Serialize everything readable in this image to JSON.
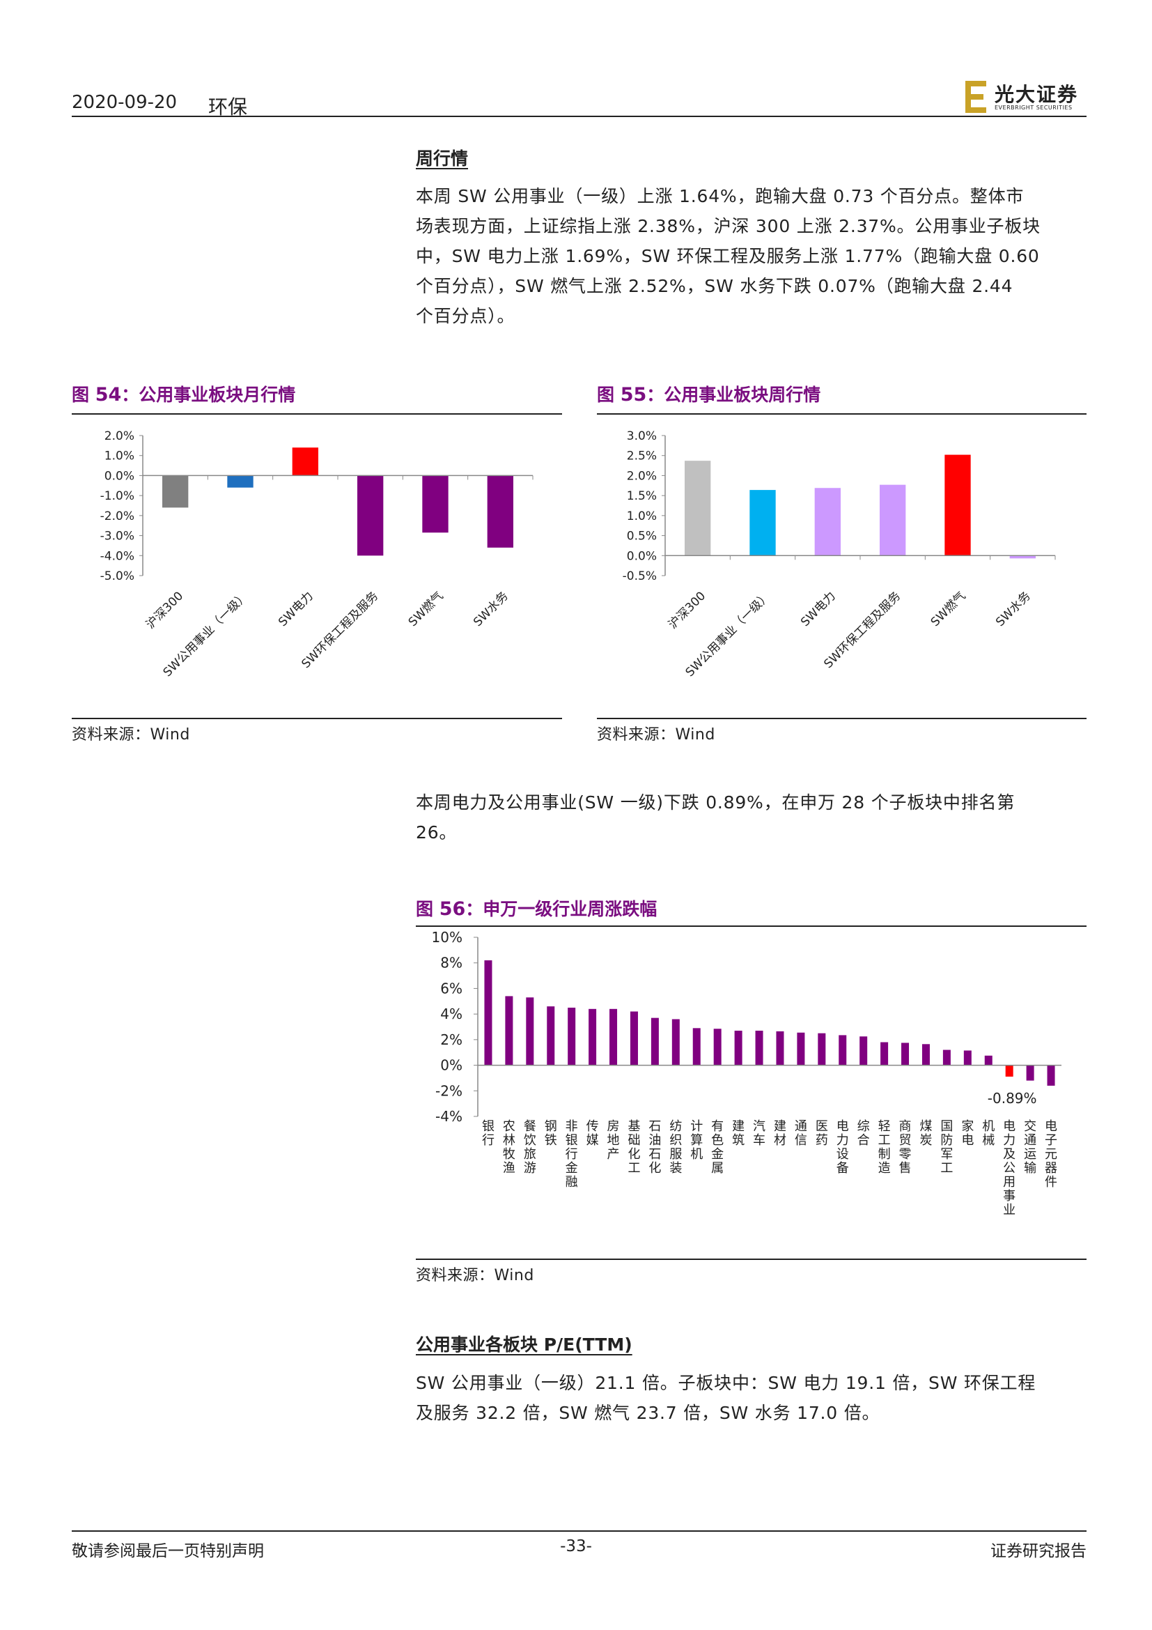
{
  "header": {
    "date": "2020-09-20",
    "category": "环保",
    "logo_text": "光大证券",
    "logo_sub": "EVERBRIGHT SECURITIES"
  },
  "weekly_market": {
    "title": "周行情",
    "lines": [
      "本周 SW 公用事业（一级）上涨 1.64%，跑输大盘 0.73 个百分点。整体市",
      "场表现方面，上证综指上涨 2.38%，沪深 300 上涨 2.37%。公用事业子板块",
      "中，SW 电力上涨 1.69%，SW 环保工程及服务上涨 1.77%（跑输大盘 0.60",
      "个百分点），SW 燃气上涨 2.52%，SW 水务下跌 0.07%（跑输大盘 2.44",
      "个百分点）。"
    ]
  },
  "fig54": {
    "prefix": "图 ",
    "num": "54",
    "title": "：公用事业板块月行情",
    "source": "资料来源：Wind"
  },
  "fig55": {
    "prefix": "图 ",
    "num": "55",
    "title": "：公用事业板块周行情",
    "source": "资料来源：Wind"
  },
  "ranking": {
    "lines": [
      "本周电力及公用事业(SW 一级)下跌 0.89%，在申万 28 个子板块中排名第",
      "26。"
    ]
  },
  "fig56": {
    "prefix": "图 ",
    "num": "56",
    "title": "：申万一级行业周涨跌幅",
    "source": "资料来源：Wind",
    "annotation": "-0.89%"
  },
  "pe": {
    "title": "公用事业各板块 P/E(TTM)",
    "lines": [
      "SW 公用事业（一级）21.1 倍。子板块中：SW 电力 19.1 倍，SW 环保工程",
      "及服务 32.2 倍，SW 燃气 23.7 倍，SW 水务 17.0 倍。"
    ]
  },
  "footer": {
    "left": "敬请参阅最后一页特别声明",
    "center": "-33-",
    "right": "证券研究报告"
  },
  "chart_data": [
    {
      "type": "bar",
      "categories": [
        "沪深300",
        "SW公用事业（一级）",
        "SW电力",
        "SW环保工程及服务",
        "SW燃气",
        "SW水务"
      ],
      "values": [
        -1.6,
        -0.6,
        1.4,
        -4.0,
        -2.85,
        -3.6
      ],
      "colors": [
        "#808080",
        "#1f6fbf",
        "#ff0000",
        "#800080",
        "#800080",
        "#800080"
      ],
      "ylim": [
        -5.0,
        2.0
      ],
      "yticks": [
        "2.0%",
        "1.0%",
        "0.0%",
        "-1.0%",
        "-2.0%",
        "-3.0%",
        "-4.0%",
        "-5.0%"
      ],
      "ytick_values": [
        2,
        1,
        0,
        -1,
        -2,
        -3,
        -4,
        -5
      ]
    },
    {
      "type": "bar",
      "categories": [
        "沪深300",
        "SW公用事业（一级）",
        "SW电力",
        "SW环保工程及服务",
        "SW燃气",
        "SW水务"
      ],
      "values": [
        2.37,
        1.64,
        1.69,
        1.77,
        2.52,
        -0.07
      ],
      "colors": [
        "#c0c0c0",
        "#00b0f0",
        "#cc99ff",
        "#cc99ff",
        "#ff0000",
        "#cc99ff"
      ],
      "ylim": [
        -0.5,
        3.0
      ],
      "yticks": [
        "3.0%",
        "2.5%",
        "2.0%",
        "1.5%",
        "1.0%",
        "0.5%",
        "0.0%",
        "-0.5%"
      ],
      "ytick_values": [
        3,
        2.5,
        2,
        1.5,
        1,
        0.5,
        0,
        -0.5
      ]
    },
    {
      "type": "bar",
      "categories": [
        "银行",
        "农林牧渔",
        "餐饮旅游",
        "钢铁",
        "非银行金融",
        "传媒",
        "房地产",
        "基础化工",
        "石油石化",
        "纺织服装",
        "计算机",
        "有色金属",
        "建筑",
        "汽车",
        "建材",
        "通信",
        "医药",
        "电力设备",
        "综合",
        "轻工制造",
        "商贸零售",
        "煤炭",
        "国防军工",
        "家电",
        "机械",
        "电力及公用事业",
        "交通运输",
        "电子元器件"
      ],
      "values": [
        8.2,
        5.4,
        5.3,
        4.6,
        4.5,
        4.4,
        4.4,
        4.2,
        3.7,
        3.6,
        2.9,
        2.85,
        2.7,
        2.7,
        2.65,
        2.55,
        2.5,
        2.35,
        2.25,
        1.8,
        1.75,
        1.65,
        1.2,
        1.15,
        0.75,
        -0.89,
        -1.2,
        -1.6
      ],
      "colors": [
        "#800080",
        "#800080",
        "#800080",
        "#800080",
        "#800080",
        "#800080",
        "#800080",
        "#800080",
        "#800080",
        "#800080",
        "#800080",
        "#800080",
        "#800080",
        "#800080",
        "#800080",
        "#800080",
        "#800080",
        "#800080",
        "#800080",
        "#800080",
        "#800080",
        "#800080",
        "#800080",
        "#800080",
        "#800080",
        "#ff0000",
        "#800080",
        "#800080"
      ],
      "ylim": [
        -4,
        10
      ],
      "yticks": [
        "10%",
        "8%",
        "6%",
        "4%",
        "2%",
        "0%",
        "-2%",
        "-4%"
      ],
      "ytick_values": [
        10,
        8,
        6,
        4,
        2,
        0,
        -2,
        -4
      ]
    }
  ]
}
